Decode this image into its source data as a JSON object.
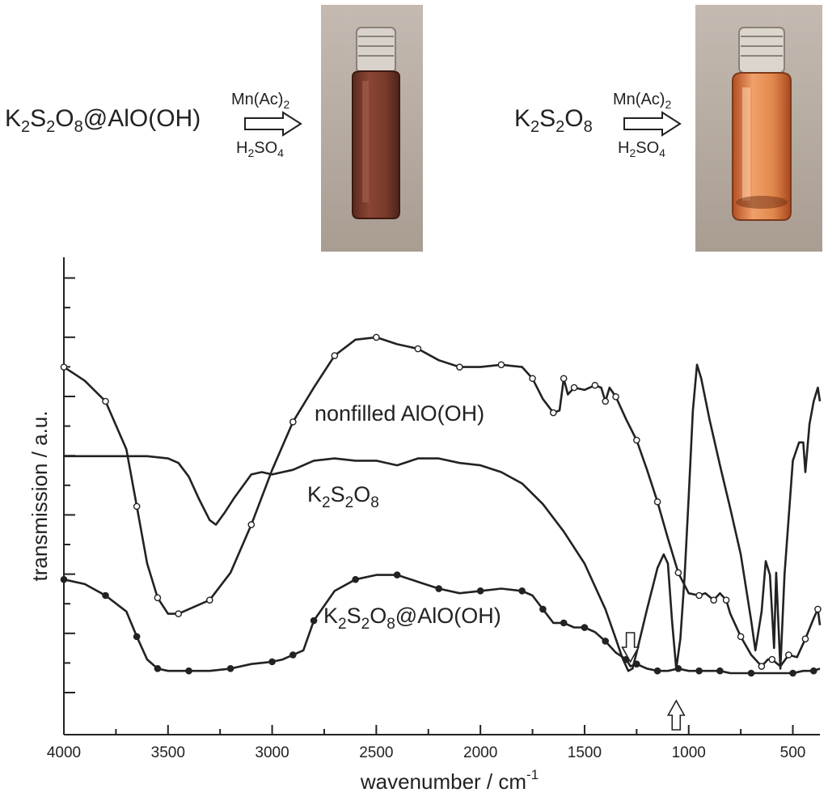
{
  "scheme": {
    "left": {
      "reactant_base": "K",
      "reactant_sub1": "2",
      "reactant_mid": "S",
      "reactant_sub2": "2",
      "reactant_mid2": "O",
      "reactant_sub3": "8",
      "reactant_suffix": "@AlO(OH)",
      "reagent_top_base": "Mn(Ac)",
      "reagent_top_sub": "2",
      "reagent_bottom_h": "H",
      "reagent_bottom_sub1": "2",
      "reagent_bottom_so": "SO",
      "reagent_bottom_sub2": "4"
    },
    "right": {
      "reactant_base": "K",
      "reactant_sub1": "2",
      "reactant_mid": "S",
      "reactant_sub2": "2",
      "reactant_mid2": "O",
      "reactant_sub3": "8",
      "reagent_top_base": "Mn(Ac)",
      "reagent_top_sub": "2",
      "reagent_bottom_h": "H",
      "reagent_bottom_sub1": "2",
      "reagent_bottom_so": "SO",
      "reagent_bottom_sub2": "4"
    },
    "colors": {
      "vial_left_liquid": "#7a3a2a",
      "vial_right_liquid": "#d9793f",
      "photo_bg": "#b8ada3"
    }
  },
  "chart_data": {
    "type": "line",
    "xlabel": "wavenumber / cm",
    "xlabel_sup": "-1",
    "ylabel": "transmission / a.u.",
    "xlim": [
      4000,
      370
    ],
    "x_reversed": true,
    "x_ticks": [
      4000,
      3500,
      3000,
      2500,
      2000,
      1500,
      1000,
      500
    ],
    "y_ticks_unlabeled": 15,
    "series": [
      {
        "name": "nonfilled AlO(OH)",
        "marker": "open-circle",
        "points": [
          [
            4000,
            0.755
          ],
          [
            3900,
            0.725
          ],
          [
            3800,
            0.68
          ],
          [
            3700,
            0.575
          ],
          [
            3650,
            0.45
          ],
          [
            3600,
            0.325
          ],
          [
            3550,
            0.25
          ],
          [
            3500,
            0.215
          ],
          [
            3450,
            0.215
          ],
          [
            3400,
            0.225
          ],
          [
            3300,
            0.245
          ],
          [
            3200,
            0.305
          ],
          [
            3100,
            0.41
          ],
          [
            3000,
            0.53
          ],
          [
            2900,
            0.635
          ],
          [
            2800,
            0.71
          ],
          [
            2700,
            0.78
          ],
          [
            2600,
            0.815
          ],
          [
            2500,
            0.82
          ],
          [
            2400,
            0.805
          ],
          [
            2300,
            0.795
          ],
          [
            2200,
            0.77
          ],
          [
            2100,
            0.755
          ],
          [
            2000,
            0.755
          ],
          [
            1900,
            0.76
          ],
          [
            1800,
            0.755
          ],
          [
            1750,
            0.73
          ],
          [
            1700,
            0.685
          ],
          [
            1650,
            0.655
          ],
          [
            1620,
            0.66
          ],
          [
            1600,
            0.73
          ],
          [
            1580,
            0.695
          ],
          [
            1550,
            0.71
          ],
          [
            1500,
            0.705
          ],
          [
            1450,
            0.715
          ],
          [
            1420,
            0.71
          ],
          [
            1400,
            0.68
          ],
          [
            1380,
            0.71
          ],
          [
            1350,
            0.69
          ],
          [
            1300,
            0.64
          ],
          [
            1250,
            0.595
          ],
          [
            1200,
            0.53
          ],
          [
            1150,
            0.46
          ],
          [
            1100,
            0.38
          ],
          [
            1050,
            0.305
          ],
          [
            1000,
            0.26
          ],
          [
            950,
            0.255
          ],
          [
            920,
            0.26
          ],
          [
            880,
            0.245
          ],
          [
            850,
            0.26
          ],
          [
            820,
            0.245
          ],
          [
            800,
            0.215
          ],
          [
            750,
            0.165
          ],
          [
            700,
            0.125
          ],
          [
            650,
            0.1
          ],
          [
            620,
            0.115
          ],
          [
            600,
            0.115
          ],
          [
            560,
            0.1
          ],
          [
            520,
            0.125
          ],
          [
            480,
            0.12
          ],
          [
            440,
            0.16
          ],
          [
            400,
            0.205
          ],
          [
            380,
            0.225
          ],
          [
            370,
            0.19
          ]
        ]
      },
      {
        "name": "K2S2O8",
        "marker": "none",
        "points": [
          [
            4000,
            0.56
          ],
          [
            3800,
            0.56
          ],
          [
            3600,
            0.56
          ],
          [
            3500,
            0.555
          ],
          [
            3450,
            0.545
          ],
          [
            3400,
            0.515
          ],
          [
            3350,
            0.465
          ],
          [
            3300,
            0.42
          ],
          [
            3270,
            0.41
          ],
          [
            3230,
            0.435
          ],
          [
            3180,
            0.47
          ],
          [
            3100,
            0.52
          ],
          [
            3050,
            0.525
          ],
          [
            3000,
            0.52
          ],
          [
            2900,
            0.53
          ],
          [
            2800,
            0.55
          ],
          [
            2700,
            0.555
          ],
          [
            2600,
            0.55
          ],
          [
            2500,
            0.55
          ],
          [
            2400,
            0.54
          ],
          [
            2300,
            0.555
          ],
          [
            2200,
            0.555
          ],
          [
            2100,
            0.545
          ],
          [
            2000,
            0.54
          ],
          [
            1900,
            0.525
          ],
          [
            1800,
            0.5
          ],
          [
            1700,
            0.455
          ],
          [
            1600,
            0.395
          ],
          [
            1500,
            0.325
          ],
          [
            1450,
            0.275
          ],
          [
            1400,
            0.225
          ],
          [
            1350,
            0.16
          ],
          [
            1320,
            0.12
          ],
          [
            1290,
            0.09
          ],
          [
            1270,
            0.095
          ],
          [
            1250,
            0.13
          ],
          [
            1200,
            0.225
          ],
          [
            1150,
            0.315
          ],
          [
            1120,
            0.345
          ],
          [
            1100,
            0.325
          ],
          [
            1080,
            0.2
          ],
          [
            1060,
            0.095
          ],
          [
            1040,
            0.16
          ],
          [
            1020,
            0.295
          ],
          [
            1000,
            0.47
          ],
          [
            980,
            0.66
          ],
          [
            960,
            0.76
          ],
          [
            940,
            0.73
          ],
          [
            900,
            0.64
          ],
          [
            850,
            0.54
          ],
          [
            800,
            0.445
          ],
          [
            750,
            0.345
          ],
          [
            700,
            0.2
          ],
          [
            680,
            0.135
          ],
          [
            650,
            0.22
          ],
          [
            630,
            0.33
          ],
          [
            610,
            0.3
          ],
          [
            590,
            0.14
          ],
          [
            580,
            0.305
          ],
          [
            560,
            0.095
          ],
          [
            540,
            0.3
          ],
          [
            500,
            0.55
          ],
          [
            470,
            0.59
          ],
          [
            450,
            0.59
          ],
          [
            440,
            0.525
          ],
          [
            420,
            0.63
          ],
          [
            400,
            0.68
          ],
          [
            380,
            0.71
          ],
          [
            370,
            0.68
          ]
        ]
      },
      {
        "name": "K2S2O8@AlO(OH)",
        "marker": "filled-circle",
        "points": [
          [
            4000,
            0.29
          ],
          [
            3900,
            0.28
          ],
          [
            3800,
            0.255
          ],
          [
            3700,
            0.22
          ],
          [
            3650,
            0.165
          ],
          [
            3600,
            0.115
          ],
          [
            3550,
            0.095
          ],
          [
            3500,
            0.09
          ],
          [
            3400,
            0.09
          ],
          [
            3300,
            0.09
          ],
          [
            3200,
            0.095
          ],
          [
            3100,
            0.105
          ],
          [
            3000,
            0.11
          ],
          [
            2950,
            0.115
          ],
          [
            2900,
            0.125
          ],
          [
            2850,
            0.135
          ],
          [
            2800,
            0.2
          ],
          [
            2700,
            0.265
          ],
          [
            2600,
            0.29
          ],
          [
            2500,
            0.3
          ],
          [
            2400,
            0.3
          ],
          [
            2300,
            0.285
          ],
          [
            2200,
            0.27
          ],
          [
            2100,
            0.26
          ],
          [
            2000,
            0.265
          ],
          [
            1900,
            0.27
          ],
          [
            1800,
            0.265
          ],
          [
            1750,
            0.255
          ],
          [
            1700,
            0.225
          ],
          [
            1650,
            0.195
          ],
          [
            1600,
            0.195
          ],
          [
            1550,
            0.185
          ],
          [
            1500,
            0.185
          ],
          [
            1450,
            0.175
          ],
          [
            1400,
            0.155
          ],
          [
            1350,
            0.13
          ],
          [
            1300,
            0.115
          ],
          [
            1280,
            0.1
          ],
          [
            1250,
            0.105
          ],
          [
            1200,
            0.095
          ],
          [
            1150,
            0.09
          ],
          [
            1100,
            0.09
          ],
          [
            1050,
            0.095
          ],
          [
            1000,
            0.09
          ],
          [
            950,
            0.09
          ],
          [
            900,
            0.09
          ],
          [
            850,
            0.09
          ],
          [
            800,
            0.085
          ],
          [
            700,
            0.085
          ],
          [
            600,
            0.085
          ],
          [
            500,
            0.085
          ],
          [
            450,
            0.09
          ],
          [
            400,
            0.09
          ],
          [
            370,
            0.095
          ]
        ]
      }
    ],
    "annotations": [
      {
        "text": "nonfilled AlO(OH)",
        "kind": "series-label"
      },
      {
        "text": "K2S2O8",
        "kind": "series-label"
      },
      {
        "text": "K2S2O8@AlO(OH)",
        "kind": "series-label"
      },
      {
        "kind": "down-arrow",
        "x": 1280
      },
      {
        "kind": "up-arrow",
        "x": 1060
      }
    ]
  }
}
